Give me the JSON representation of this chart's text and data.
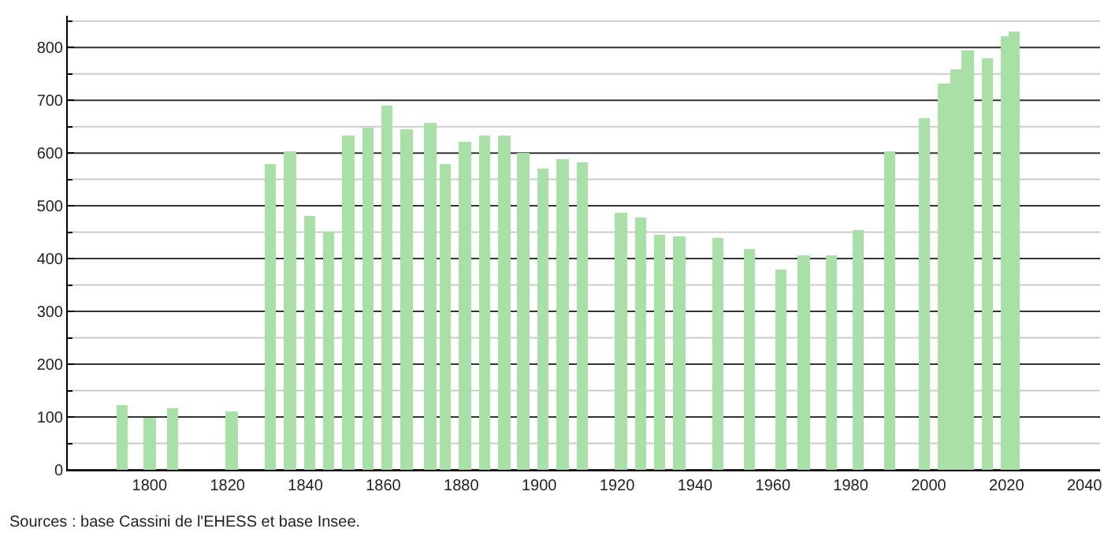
{
  "chart_data": {
    "type": "bar",
    "x": [
      1793,
      1800,
      1806,
      1821,
      1831,
      1836,
      1841,
      1846,
      1851,
      1856,
      1861,
      1866,
      1872,
      1876,
      1881,
      1886,
      1891,
      1896,
      1901,
      1906,
      1911,
      1921,
      1926,
      1931,
      1936,
      1946,
      1954,
      1962,
      1968,
      1975,
      1982,
      1990,
      1999,
      2004,
      2007,
      2010,
      2015,
      2020,
      2022
    ],
    "values": [
      122,
      100,
      115,
      111,
      579,
      604,
      481,
      451,
      632,
      649,
      691,
      644,
      657,
      579,
      620,
      634,
      632,
      600,
      569,
      587,
      582,
      486,
      478,
      446,
      443,
      439,
      419,
      380,
      406,
      406,
      455,
      603,
      667,
      732,
      758,
      794,
      780,
      820,
      831
    ],
    "color": "#a8e0a8",
    "xlim": [
      1779,
      2044
    ],
    "xticks": [
      1800,
      1820,
      1840,
      1860,
      1880,
      1900,
      1920,
      1940,
      1960,
      1980,
      2000,
      2020,
      2040
    ],
    "ylim": [
      0,
      860
    ],
    "yticks": [
      0,
      {
        "value": 50,
        "label": null
      },
      100,
      {
        "value": 150,
        "label": null
      },
      200,
      {
        "value": 250,
        "label": null
      },
      300,
      {
        "value": 350,
        "label": null
      },
      400,
      {
        "value": 450,
        "label": null
      },
      500,
      {
        "value": 550,
        "label": null
      },
      600,
      {
        "value": 650,
        "label": null
      },
      700,
      {
        "value": 750,
        "label": null
      },
      800,
      {
        "value": 850,
        "label": null
      }
    ],
    "grid": "y",
    "annotations": [
      "Sources : base Cassini de l'EHESS et base Insee."
    ]
  }
}
